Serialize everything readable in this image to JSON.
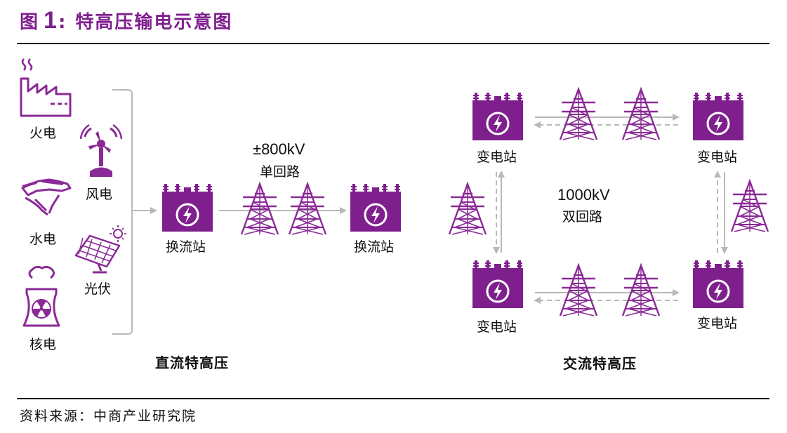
{
  "header": {
    "fig_prefix": "图",
    "fig_number": "1",
    "colon": ":",
    "title": "特高压输电示意图"
  },
  "sources": {
    "thermal": "火电",
    "wind": "风电",
    "hydro": "水电",
    "solar": "光伏",
    "nuclear": "核电"
  },
  "dc": {
    "voltage": "±800kV",
    "circuit": "单回路",
    "station_left": "换流站",
    "station_right": "换流站",
    "caption": "直流特高压"
  },
  "ac": {
    "voltage": "1000kV",
    "circuit": "双回路",
    "station_tl": "变电站",
    "station_tr": "变电站",
    "station_bl": "变电站",
    "station_br": "变电站",
    "caption": "交流特高压"
  },
  "footer": {
    "source_text": "资料来源：中商产业研究院"
  },
  "colors": {
    "accent": "#7f1f8e",
    "icon": "#8a2a96",
    "arrow": "#b8b8b8"
  }
}
